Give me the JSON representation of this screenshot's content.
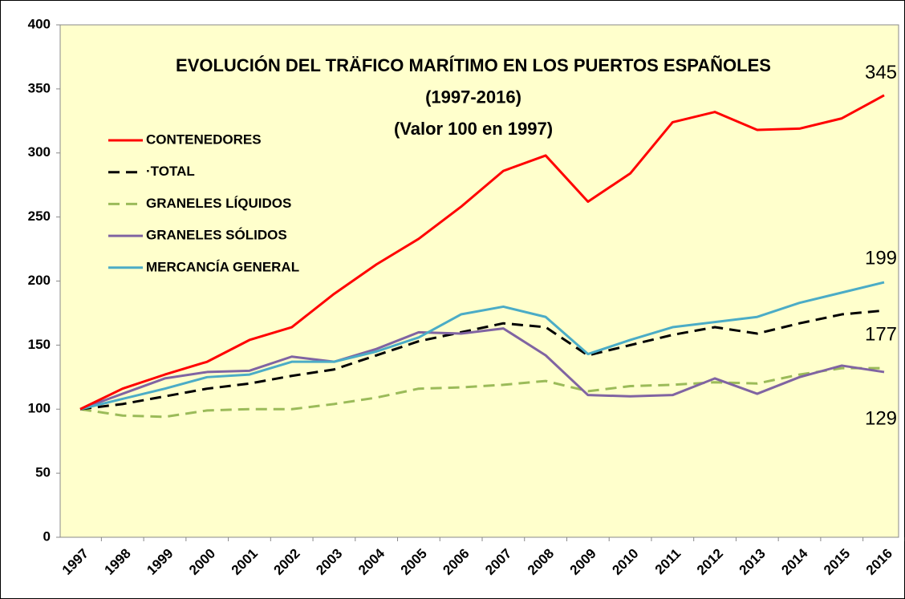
{
  "chart_data": {
    "type": "line",
    "title": [
      "EVOLUCIÓN DEL TRÄFICO MARÍTIMO EN LOS PUERTOS ESPAÑOLES",
      "(1997-2016)",
      "(Valor 100 en 1997)"
    ],
    "categories": [
      "1997",
      "1998",
      "1999",
      "2000",
      "2001",
      "2002",
      "2003",
      "2004",
      "2005",
      "2006",
      "2007",
      "2008",
      "2009",
      "2010",
      "2011",
      "2012",
      "2013",
      "2014",
      "2015",
      "2016"
    ],
    "series": [
      {
        "name": "CONTENEDORES",
        "color": "#ff0000",
        "dashed": false,
        "values": [
          100,
          116,
          127,
          137,
          154,
          164,
          190,
          213,
          233,
          258,
          286,
          298,
          262,
          284,
          324,
          332,
          318,
          319,
          327,
          345
        ]
      },
      {
        "name": "·TOTAL",
        "color": "#000000",
        "dashed": true,
        "values": [
          100,
          104,
          110,
          116,
          120,
          126,
          131,
          142,
          153,
          160,
          167,
          164,
          142,
          150,
          158,
          164,
          159,
          167,
          174,
          177
        ]
      },
      {
        "name": "GRANELES LÍQUIDOS",
        "color": "#9bbb59",
        "dashed": true,
        "values": [
          100,
          95,
          94,
          99,
          100,
          100,
          104,
          109,
          116,
          117,
          119,
          122,
          114,
          118,
          119,
          121,
          120,
          127,
          132,
          132
        ]
      },
      {
        "name": "GRANELES SÓLIDOS",
        "color": "#8064a2",
        "dashed": false,
        "values": [
          100,
          112,
          124,
          129,
          130,
          141,
          137,
          147,
          160,
          159,
          163,
          142,
          111,
          110,
          111,
          124,
          112,
          125,
          134,
          129
        ]
      },
      {
        "name": "MERCANCÍA GENERAL",
        "color": "#4bacc6",
        "dashed": false,
        "values": [
          100,
          108,
          116,
          125,
          127,
          137,
          137,
          145,
          156,
          174,
          180,
          172,
          143,
          154,
          164,
          168,
          172,
          183,
          191,
          199
        ]
      }
    ],
    "annotations": [
      345,
      199,
      177,
      129
    ],
    "ylim": [
      0,
      400
    ],
    "yticks": [
      0,
      50,
      100,
      150,
      200,
      250,
      300,
      350,
      400
    ],
    "legend": "upper left"
  }
}
